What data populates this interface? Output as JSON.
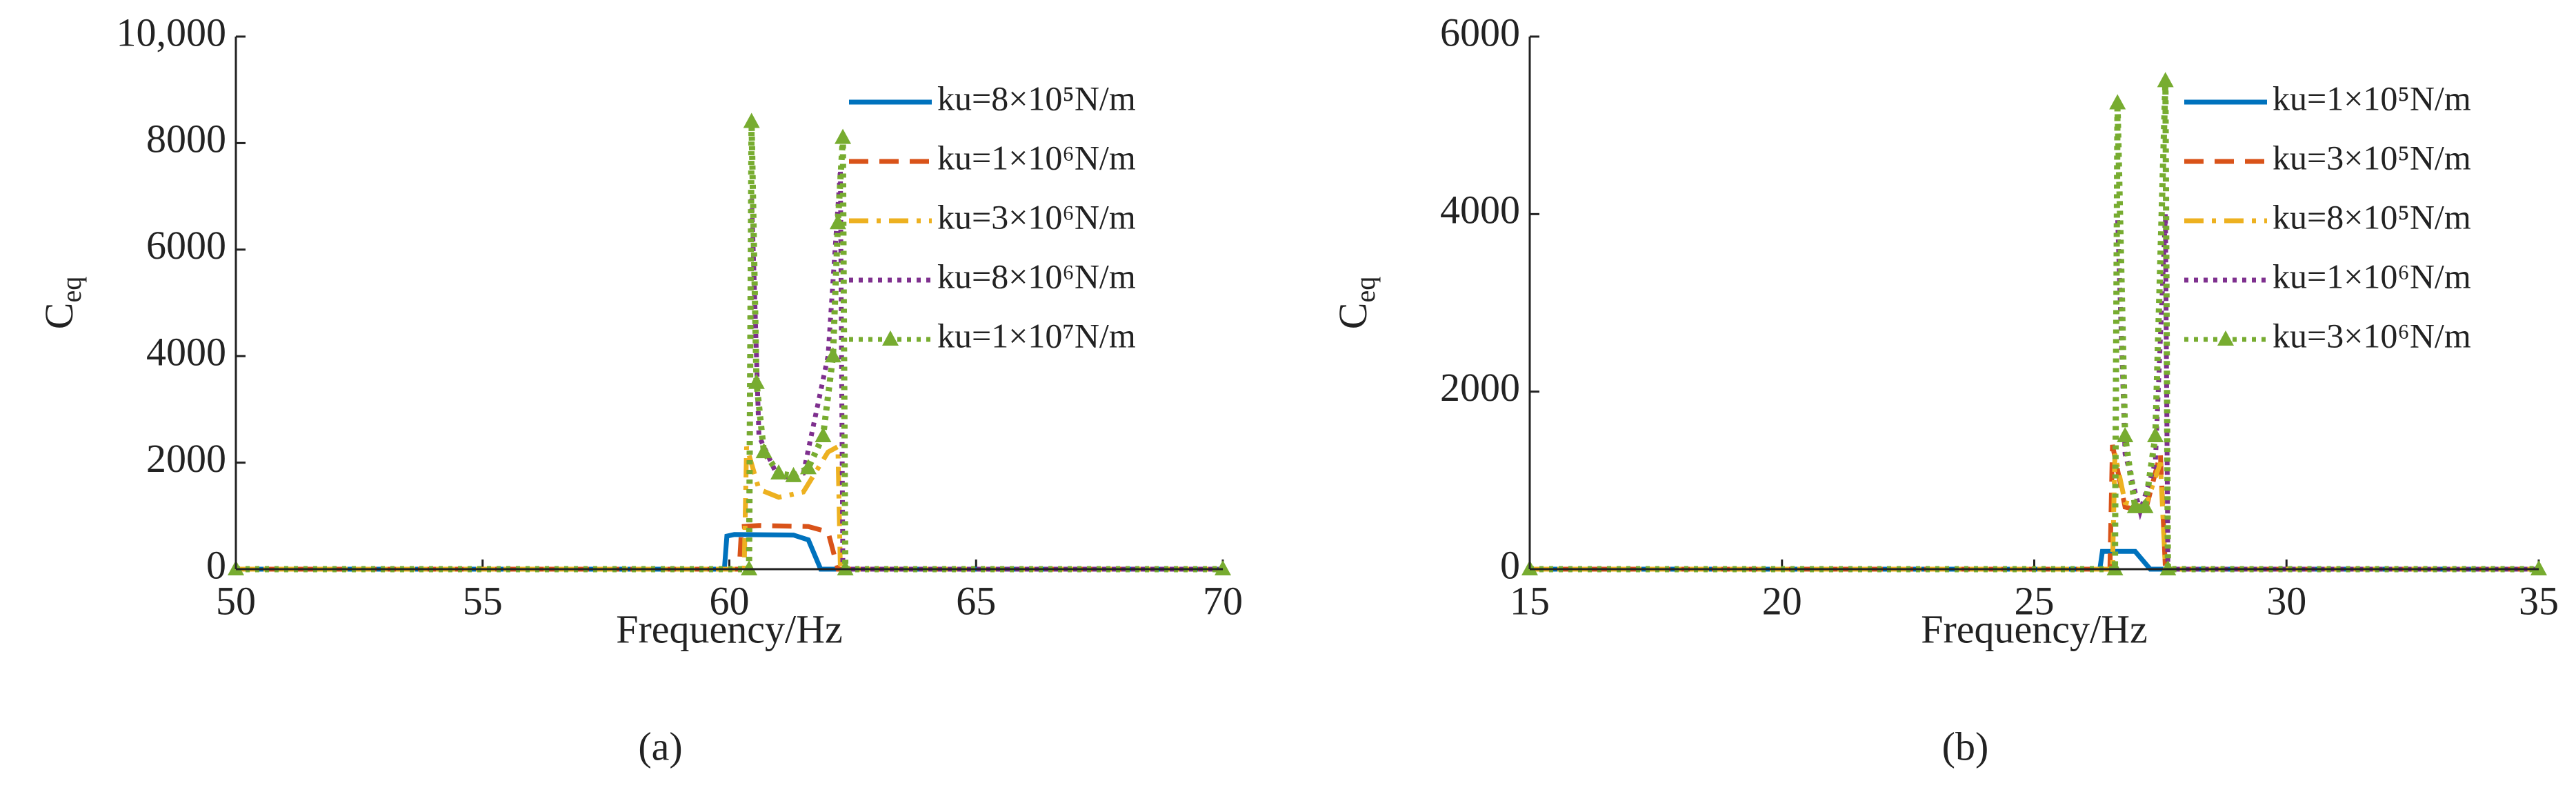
{
  "chart_data": [
    {
      "type": "line",
      "caption": "(a)",
      "xlabel": "Frequency/Hz",
      "ylabel": "C",
      "ylabel_subscript": "eq",
      "xlim": [
        50,
        70
      ],
      "xticks": [
        50,
        55,
        60,
        65,
        70
      ],
      "ylim": [
        0,
        10000
      ],
      "yticks": [
        0,
        2000,
        4000,
        6000,
        8000,
        {
          "value": 10000,
          "label": "10,000"
        }
      ],
      "legend": "upper right",
      "series": [
        {
          "name": "ku=8×10⁵N/m",
          "color": "#0072BD",
          "line_style": "solid",
          "x": [
            50,
            59.9,
            59.95,
            60.1,
            61.3,
            61.6,
            61.85,
            70
          ],
          "values": [
            0,
            0,
            620,
            650,
            640,
            550,
            0,
            0
          ]
        },
        {
          "name": "ku=1×10⁶N/m",
          "color": "#D95319",
          "line_style": "dashed",
          "x": [
            50,
            60.2,
            60.25,
            60.6,
            61.6,
            62.0,
            62.2,
            70
          ],
          "values": [
            0,
            0,
            800,
            820,
            800,
            700,
            0,
            0
          ]
        },
        {
          "name": "ku=3×10⁶N/m",
          "color": "#EDB120",
          "line_style": "dashdot",
          "x": [
            50,
            60.3,
            60.35,
            60.6,
            61,
            61.5,
            62,
            62.2,
            62.25,
            70
          ],
          "values": [
            0,
            0,
            2300,
            1500,
            1350,
            1450,
            2200,
            2300,
            0,
            0
          ]
        },
        {
          "name": "ku=8×10⁶N/m",
          "color": "#7E2F8E",
          "line_style": "dotted",
          "x": [
            50,
            60.4,
            60.45,
            60.6,
            61,
            61.5,
            62,
            62.25,
            62.3,
            70
          ],
          "values": [
            0,
            0,
            7000,
            2500,
            1700,
            1800,
            4000,
            7500,
            0,
            0
          ]
        },
        {
          "name": "ku=1×10⁷N/m",
          "color": "#77AC30",
          "line_style": "dotted",
          "marker": "triangle",
          "x": [
            50,
            60.4,
            60.45,
            60.55,
            60.7,
            61,
            61.3,
            61.6,
            61.9,
            62.1,
            62.2,
            62.3,
            62.35,
            70
          ],
          "values": [
            0,
            0,
            8400,
            3500,
            2200,
            1800,
            1750,
            1900,
            2500,
            4000,
            6500,
            8100,
            0,
            0
          ]
        }
      ]
    },
    {
      "type": "line",
      "caption": "(b)",
      "xlabel": "Frequency/Hz",
      "ylabel": "C",
      "ylabel_subscript": "eq",
      "xlim": [
        15,
        35
      ],
      "xticks": [
        15,
        20,
        25,
        30,
        35
      ],
      "ylim": [
        0,
        6000
      ],
      "yticks": [
        0,
        2000,
        4000,
        6000
      ],
      "legend": "upper right",
      "series": [
        {
          "name": "ku=1×10⁵N/m",
          "color": "#0072BD",
          "line_style": "solid",
          "x": [
            15,
            26.3,
            26.35,
            27,
            27.3,
            35
          ],
          "values": [
            0,
            0,
            200,
            200,
            0,
            0
          ]
        },
        {
          "name": "ku=3×10⁵N/m",
          "color": "#D95319",
          "line_style": "dashed",
          "x": [
            15,
            26.5,
            26.55,
            26.8,
            27.2,
            27.5,
            27.6,
            35
          ],
          "values": [
            0,
            0,
            1400,
            700,
            650,
            1300,
            0,
            0
          ]
        },
        {
          "name": "ku=8×10⁵N/m",
          "color": "#EDB120",
          "line_style": "dashdot",
          "x": [
            15,
            26.55,
            26.6,
            26.8,
            27.2,
            27.5,
            27.6,
            35
          ],
          "values": [
            0,
            0,
            1300,
            750,
            700,
            1200,
            0,
            0
          ]
        },
        {
          "name": "ku=1×10⁶N/m",
          "color": "#7E2F8E",
          "line_style": "dotted",
          "x": [
            15,
            26.6,
            26.65,
            26.8,
            27.1,
            27.4,
            27.6,
            27.65,
            35
          ],
          "values": [
            0,
            0,
            4000,
            1300,
            650,
            1200,
            4000,
            0,
            0
          ]
        },
        {
          "name": "ku=3×10⁶N/m",
          "color": "#77AC30",
          "line_style": "dotted",
          "marker": "triangle",
          "x": [
            15,
            26.6,
            26.65,
            26.8,
            27,
            27.2,
            27.4,
            27.6,
            27.65,
            35
          ],
          "values": [
            0,
            0,
            5250,
            1500,
            700,
            700,
            1500,
            5500,
            0,
            0
          ]
        }
      ]
    }
  ]
}
